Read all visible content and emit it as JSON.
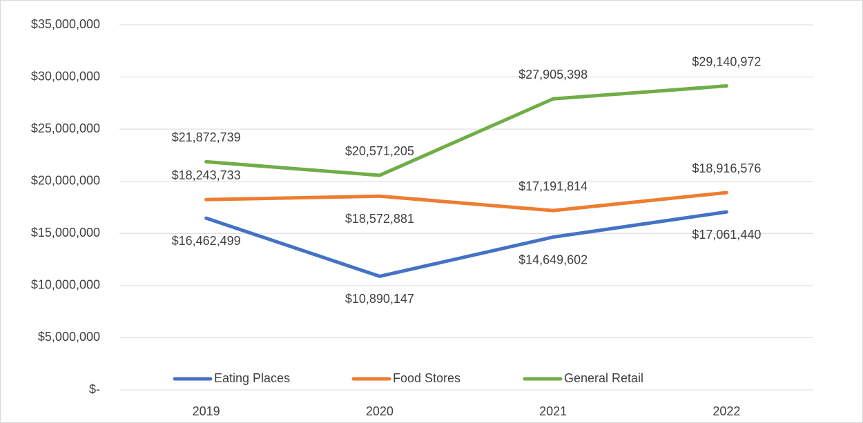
{
  "chart_data": {
    "type": "line",
    "categories": [
      "2019",
      "2020",
      "2021",
      "2022"
    ],
    "series": [
      {
        "name": "Eating Places",
        "color": "#4472c4",
        "values": [
          16462499,
          10890147,
          14649602,
          17061440
        ],
        "value_labels": [
          "$16,462,499",
          "$10,890,147",
          "$14,649,602",
          "$17,061,440"
        ]
      },
      {
        "name": "Food Stores",
        "color": "#ed7d31",
        "values": [
          18243733,
          18572881,
          17191814,
          18916576
        ],
        "value_labels": [
          "$18,243,733",
          "$18,572,881",
          "$17,191,814",
          "$18,916,576"
        ]
      },
      {
        "name": "General Retail",
        "color": "#70ad47",
        "values": [
          21872739,
          20571205,
          27905398,
          29140972
        ],
        "value_labels": [
          "$21,872,739",
          "$20,571,205",
          "$27,905,398",
          "$29,140,972"
        ]
      }
    ],
    "ylim": [
      0,
      35000000
    ],
    "yticks": [
      {
        "value": 0,
        "label": "$-"
      },
      {
        "value": 5000000,
        "label": "$5,000,000"
      },
      {
        "value": 10000000,
        "label": "$10,000,000"
      },
      {
        "value": 15000000,
        "label": "$15,000,000"
      },
      {
        "value": 20000000,
        "label": "$20,000,000"
      },
      {
        "value": 25000000,
        "label": "$25,000,000"
      },
      {
        "value": 30000000,
        "label": "$30,000,000"
      },
      {
        "value": 35000000,
        "label": "$35,000,000"
      }
    ],
    "grid": true,
    "legend": "bottom"
  }
}
